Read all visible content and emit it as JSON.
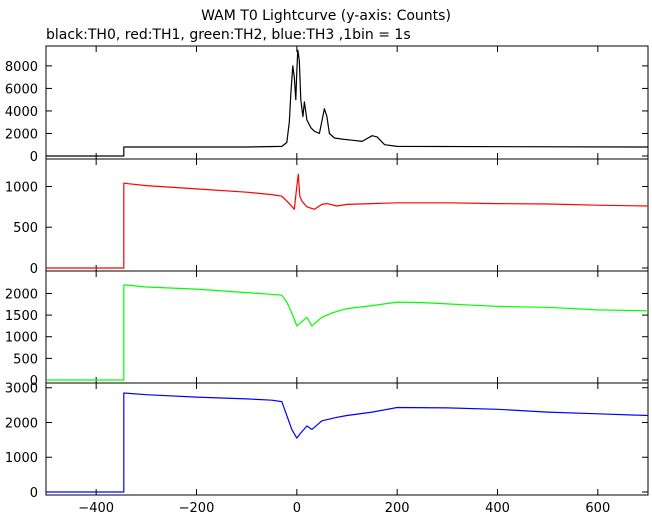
{
  "chart_data": {
    "type": "line",
    "title": "WAM T0 Lightcurve (y-axis: Counts)",
    "subtitle": "black:TH0, red:TH1, green:TH2, blue:TH3 ,1bin = 1s",
    "xlim": [
      -500,
      700
    ],
    "x_ticks": [
      -400,
      -200,
      0,
      200,
      400,
      600
    ],
    "x_tick_labels": [
      "−400",
      "−200",
      "0",
      "200",
      "400",
      "600"
    ],
    "grid": false,
    "panels": [
      {
        "name": "TH0",
        "color": "#000000",
        "ylim": [
          0,
          9500
        ],
        "y_ticks": [
          0,
          2000,
          4000,
          6000,
          8000
        ],
        "points": [
          [
            -500,
            0
          ],
          [
            -345,
            0
          ],
          [
            -345,
            800
          ],
          [
            -100,
            800
          ],
          [
            -30,
            850
          ],
          [
            -20,
            1200
          ],
          [
            -15,
            3000
          ],
          [
            -12,
            5500
          ],
          [
            -8,
            8000
          ],
          [
            -5,
            7000
          ],
          [
            -2,
            5000
          ],
          [
            0,
            7500
          ],
          [
            2,
            9400
          ],
          [
            5,
            8500
          ],
          [
            8,
            5000
          ],
          [
            12,
            3500
          ],
          [
            15,
            4800
          ],
          [
            20,
            3200
          ],
          [
            28,
            2500
          ],
          [
            35,
            2200
          ],
          [
            45,
            2000
          ],
          [
            55,
            4200
          ],
          [
            60,
            3500
          ],
          [
            65,
            2000
          ],
          [
            75,
            1600
          ],
          [
            90,
            1500
          ],
          [
            110,
            1400
          ],
          [
            130,
            1300
          ],
          [
            150,
            1800
          ],
          [
            160,
            1700
          ],
          [
            175,
            1000
          ],
          [
            200,
            850
          ],
          [
            700,
            800
          ]
        ]
      },
      {
        "name": "TH1",
        "color": "#ff0000",
        "ylim": [
          0,
          1300
        ],
        "y_ticks": [
          0,
          500,
          1000
        ],
        "points": [
          [
            -500,
            0
          ],
          [
            -345,
            0
          ],
          [
            -345,
            1040
          ],
          [
            -300,
            1010
          ],
          [
            -200,
            970
          ],
          [
            -100,
            930
          ],
          [
            -50,
            900
          ],
          [
            -30,
            880
          ],
          [
            -15,
            790
          ],
          [
            -5,
            720
          ],
          [
            0,
            1000
          ],
          [
            3,
            1150
          ],
          [
            6,
            880
          ],
          [
            10,
            820
          ],
          [
            20,
            750
          ],
          [
            35,
            720
          ],
          [
            50,
            780
          ],
          [
            60,
            790
          ],
          [
            80,
            760
          ],
          [
            100,
            780
          ],
          [
            150,
            790
          ],
          [
            200,
            800
          ],
          [
            300,
            800
          ],
          [
            400,
            790
          ],
          [
            500,
            785
          ],
          [
            600,
            770
          ],
          [
            700,
            760
          ]
        ]
      },
      {
        "name": "TH2",
        "color": "#00ff00",
        "ylim": [
          0,
          2450
        ],
        "y_ticks": [
          0,
          500,
          1000,
          1500,
          2000
        ],
        "points": [
          [
            -500,
            0
          ],
          [
            -345,
            0
          ],
          [
            -345,
            2200
          ],
          [
            -300,
            2150
          ],
          [
            -200,
            2100
          ],
          [
            -100,
            2020
          ],
          [
            -50,
            1980
          ],
          [
            -30,
            1960
          ],
          [
            -20,
            1800
          ],
          [
            -10,
            1550
          ],
          [
            0,
            1250
          ],
          [
            10,
            1350
          ],
          [
            20,
            1450
          ],
          [
            30,
            1250
          ],
          [
            50,
            1450
          ],
          [
            70,
            1550
          ],
          [
            100,
            1650
          ],
          [
            150,
            1720
          ],
          [
            200,
            1800
          ],
          [
            250,
            1790
          ],
          [
            300,
            1760
          ],
          [
            350,
            1730
          ],
          [
            400,
            1700
          ],
          [
            500,
            1680
          ],
          [
            600,
            1620
          ],
          [
            700,
            1600
          ]
        ]
      },
      {
        "name": "TH3",
        "color": "#0000ff",
        "ylim": [
          0,
          3050
        ],
        "y_ticks": [
          0,
          1000,
          2000,
          3000
        ],
        "points": [
          [
            -500,
            0
          ],
          [
            -345,
            0
          ],
          [
            -345,
            2850
          ],
          [
            -300,
            2800
          ],
          [
            -200,
            2730
          ],
          [
            -100,
            2680
          ],
          [
            -50,
            2640
          ],
          [
            -30,
            2600
          ],
          [
            -20,
            2200
          ],
          [
            -10,
            1800
          ],
          [
            0,
            1550
          ],
          [
            8,
            1700
          ],
          [
            20,
            1900
          ],
          [
            30,
            1800
          ],
          [
            50,
            2050
          ],
          [
            80,
            2150
          ],
          [
            100,
            2200
          ],
          [
            150,
            2300
          ],
          [
            200,
            2430
          ],
          [
            300,
            2420
          ],
          [
            400,
            2380
          ],
          [
            500,
            2300
          ],
          [
            600,
            2250
          ],
          [
            700,
            2200
          ]
        ]
      }
    ]
  }
}
